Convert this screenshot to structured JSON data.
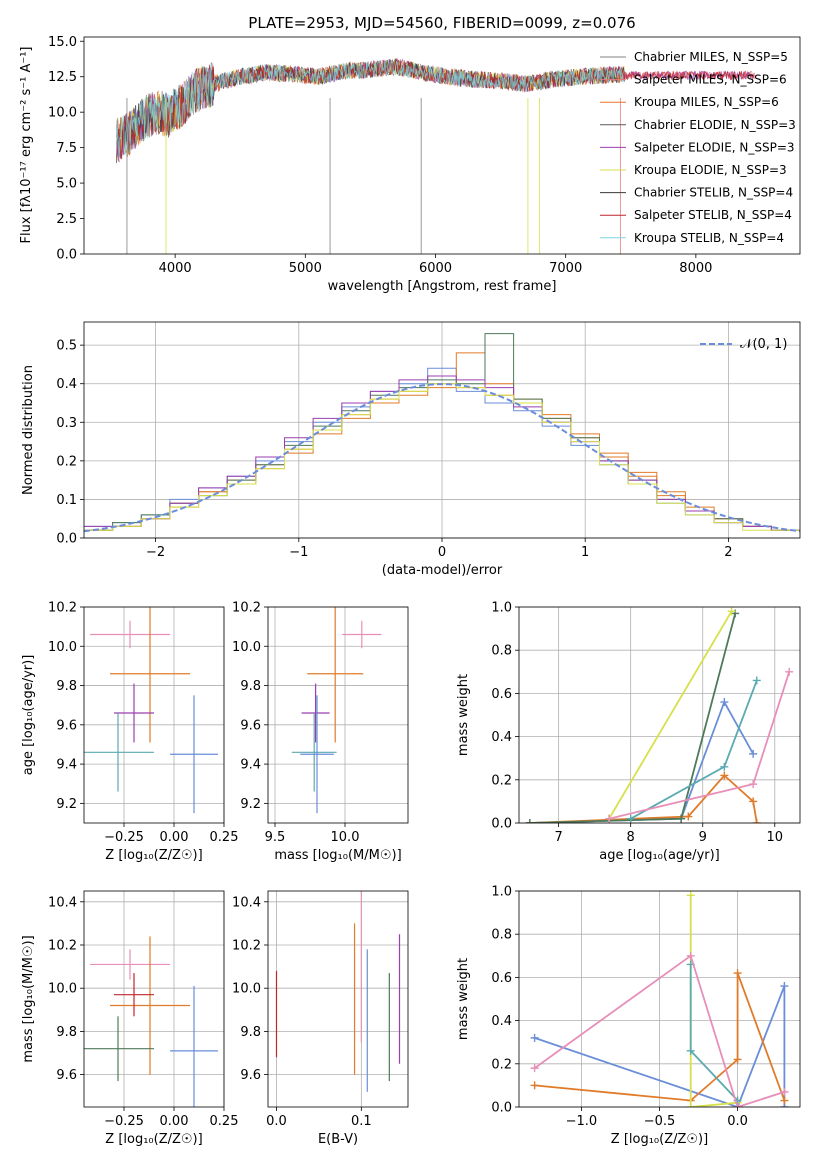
{
  "colors": {
    "series": [
      "#808080",
      "#e07b7b",
      "#e8762a",
      "#5a5a5a",
      "#9b3fb0",
      "#d7e04a",
      "#3a3a3a",
      "#c0272d",
      "#7fd6e0"
    ],
    "normal": "#6a8ed8",
    "grid": "#b0b0b0",
    "dots": [
      "#6a8ed8",
      "#e07b2a",
      "#4f7a5a",
      "#9b3fb0",
      "#5aaab0",
      "#e78fb8",
      "#d7e04a",
      "#8a8a8a",
      "#c0272d"
    ]
  },
  "chart_data": [
    {
      "type": "line",
      "title": "PLATE=2953, MJD=54560, FIBERID=0099, z=0.076",
      "xlabel": "wavelength [Angstrom, rest frame]",
      "ylabel": "Flux [fλ10⁻¹⁷ erg cm⁻² s⁻¹ A⁻¹]",
      "xlim": [
        3300,
        8800
      ],
      "ylim": [
        0,
        15.3
      ],
      "xticks": [
        4000,
        5000,
        6000,
        7000,
        8000
      ],
      "yticks": [
        0.0,
        2.5,
        5.0,
        7.5,
        10.0,
        12.5,
        15.0
      ],
      "grid": false,
      "legend_placement": "right",
      "legend": [
        "Chabrier MILES, N_SSP=5",
        "Salpeter MILES, N_SSP=6",
        "Kroupa MILES, N_SSP=6",
        "Chabrier ELODIE, N_SSP=3",
        "Salpeter ELODIE, N_SSP=3",
        "Kroupa ELODIE, N_SSP=3",
        "Chabrier STELIB, N_SSP=4",
        "Salpeter STELIB, N_SSP=4",
        "Kroupa STELIB, N_SSP=4"
      ],
      "spectrum_envelope": {
        "x": [
          3550,
          3650,
          3750,
          3850,
          3950,
          4050,
          4150,
          4300,
          4500,
          4700,
          4900,
          5100,
          5300,
          5500,
          5700,
          5900,
          6100,
          6300,
          6500,
          6700,
          6900,
          7100,
          7300,
          7450
        ],
        "y": [
          8.0,
          8.5,
          9.5,
          10.0,
          9.8,
          10.5,
          11.5,
          12.0,
          12.5,
          12.8,
          12.7,
          12.5,
          12.9,
          13.0,
          13.2,
          12.8,
          12.5,
          12.3,
          12.2,
          12.0,
          12.3,
          12.5,
          12.6,
          12.7
        ]
      }
    },
    {
      "type": "bar",
      "xlabel": "(data-model)/error",
      "ylabel": "Normed distribution",
      "xlim": [
        -2.5,
        2.5
      ],
      "ylim": [
        0,
        0.56
      ],
      "xticks": [
        -2,
        -1,
        0,
        1,
        2
      ],
      "yticks": [
        0.0,
        0.1,
        0.2,
        0.3,
        0.4,
        0.5
      ],
      "grid": true,
      "legend_placement": "top-right",
      "legend": [
        "𝒩(0, 1)"
      ],
      "bin_edges": [
        -2.5,
        -2.3,
        -2.1,
        -1.9,
        -1.7,
        -1.5,
        -1.3,
        -1.1,
        -0.9,
        -0.7,
        -0.5,
        -0.3,
        -0.1,
        0.1,
        0.3,
        0.5,
        0.7,
        0.9,
        1.1,
        1.3,
        1.5,
        1.7,
        1.9,
        2.1,
        2.3,
        2.5
      ],
      "series": [
        {
          "values": [
            0.02,
            0.03,
            0.05,
            0.09,
            0.12,
            0.15,
            0.19,
            0.23,
            0.28,
            0.32,
            0.36,
            0.38,
            0.4,
            0.39,
            0.37,
            0.35,
            0.31,
            0.26,
            0.21,
            0.16,
            0.11,
            0.07,
            0.05,
            0.03,
            0.02
          ]
        },
        {
          "values": [
            0.03,
            0.04,
            0.06,
            0.1,
            0.13,
            0.16,
            0.2,
            0.25,
            0.3,
            0.34,
            0.38,
            0.4,
            0.44,
            0.38,
            0.35,
            0.33,
            0.29,
            0.24,
            0.19,
            0.14,
            0.09,
            0.06,
            0.04,
            0.03,
            0.02
          ]
        },
        {
          "values": [
            0.02,
            0.03,
            0.05,
            0.08,
            0.12,
            0.14,
            0.18,
            0.22,
            0.27,
            0.31,
            0.35,
            0.37,
            0.39,
            0.48,
            0.4,
            0.36,
            0.32,
            0.27,
            0.22,
            0.17,
            0.12,
            0.08,
            0.05,
            0.03,
            0.02
          ]
        },
        {
          "values": [
            0.02,
            0.04,
            0.06,
            0.09,
            0.11,
            0.15,
            0.19,
            0.24,
            0.29,
            0.33,
            0.37,
            0.39,
            0.41,
            0.4,
            0.53,
            0.36,
            0.31,
            0.26,
            0.2,
            0.15,
            0.1,
            0.07,
            0.05,
            0.03,
            0.02
          ]
        },
        {
          "values": [
            0.03,
            0.03,
            0.05,
            0.09,
            0.13,
            0.16,
            0.21,
            0.26,
            0.31,
            0.35,
            0.38,
            0.41,
            0.42,
            0.41,
            0.39,
            0.34,
            0.3,
            0.25,
            0.2,
            0.15,
            0.1,
            0.07,
            0.04,
            0.03,
            0.02
          ]
        },
        {
          "values": [
            0.02,
            0.03,
            0.05,
            0.08,
            0.11,
            0.14,
            0.18,
            0.23,
            0.28,
            0.32,
            0.36,
            0.38,
            0.4,
            0.39,
            0.37,
            0.35,
            0.3,
            0.25,
            0.19,
            0.14,
            0.09,
            0.06,
            0.04,
            0.02,
            0.02
          ]
        }
      ],
      "normal_curve": {
        "mean": 0,
        "sd": 1
      }
    },
    {
      "type": "scatter",
      "xlabel": "Z [log₁₀(Z/Z☉)]",
      "ylabel": "age [log₁₀(age/yr)]",
      "xlim": [
        -0.45,
        0.25
      ],
      "ylim": [
        9.1,
        10.2
      ],
      "xticks": [
        -0.25,
        0.0,
        0.25
      ],
      "yticks": [
        9.2,
        9.4,
        9.6,
        9.8,
        10.0,
        10.2
      ],
      "grid": true,
      "errorbars": [
        {
          "x": -0.22,
          "y": 10.06,
          "xerr": 0.2,
          "yerr": 0.07,
          "c": 5
        },
        {
          "x": -0.12,
          "y": 9.86,
          "xerr": 0.2,
          "yerr": 0.35,
          "c": 1
        },
        {
          "x": -0.2,
          "y": 9.66,
          "xerr": 0.1,
          "yerr": 0.15,
          "c": 3
        },
        {
          "x": -0.28,
          "y": 9.46,
          "xerr": 0.18,
          "yerr": 0.2,
          "c": 4
        },
        {
          "x": 0.1,
          "y": 9.45,
          "xerr": 0.12,
          "yerr": 0.3,
          "c": 0
        }
      ]
    },
    {
      "type": "scatter",
      "xlabel": "mass [log₁₀(M/M☉)]",
      "ylabel": "",
      "xlim": [
        9.45,
        10.45
      ],
      "ylim": [
        9.1,
        10.2
      ],
      "xticks": [
        9.5,
        10.0
      ],
      "yticks": [
        9.2,
        9.4,
        9.6,
        9.8,
        10.0,
        10.2
      ],
      "grid": true,
      "errorbars": [
        {
          "x": 10.12,
          "y": 10.06,
          "xerr": 0.14,
          "yerr": 0.07,
          "c": 5
        },
        {
          "x": 9.93,
          "y": 9.86,
          "xerr": 0.2,
          "yerr": 0.35,
          "c": 1
        },
        {
          "x": 9.79,
          "y": 9.66,
          "xerr": 0.1,
          "yerr": 0.15,
          "c": 3
        },
        {
          "x": 9.78,
          "y": 9.46,
          "xerr": 0.16,
          "yerr": 0.2,
          "c": 4
        },
        {
          "x": 9.8,
          "y": 9.45,
          "xerr": 0.12,
          "yerr": 0.3,
          "c": 0
        }
      ]
    },
    {
      "type": "line",
      "xlabel": "age [log₁₀(age/yr)]",
      "ylabel": "mass weight",
      "xlim": [
        6.45,
        10.35
      ],
      "ylim": [
        0,
        1
      ],
      "xticks": [
        7,
        8,
        9,
        10
      ],
      "yticks": [
        0.0,
        0.2,
        0.4,
        0.6,
        0.8,
        1.0
      ],
      "grid": true,
      "series": [
        {
          "x": [
            6.6,
            8.7,
            9.3,
            9.7
          ],
          "y": [
            0.0,
            0.02,
            0.56,
            0.32
          ],
          "c": 0
        },
        {
          "x": [
            6.6,
            8.8,
            9.3,
            9.7,
            9.75
          ],
          "y": [
            0.0,
            0.03,
            0.22,
            0.1,
            0.0
          ],
          "c": 1
        },
        {
          "x": [
            6.6,
            8.7,
            9.45
          ],
          "y": [
            0.0,
            0.02,
            0.97
          ],
          "c": 2
        },
        {
          "x": [
            7.7,
            9.4
          ],
          "y": [
            0.02,
            0.98
          ],
          "c": 6
        },
        {
          "x": [
            8.0,
            9.3,
            9.75
          ],
          "y": [
            0.02,
            0.26,
            0.66
          ],
          "c": 4
        },
        {
          "x": [
            7.7,
            9.7,
            10.2
          ],
          "y": [
            0.02,
            0.18,
            0.7
          ],
          "c": 5
        }
      ]
    },
    {
      "type": "scatter",
      "xlabel": "Z [log₁₀(Z/Z☉)]",
      "ylabel": "mass [log₁₀(M/M☉)]",
      "xlim": [
        -0.45,
        0.25
      ],
      "ylim": [
        9.45,
        10.45
      ],
      "xticks": [
        -0.25,
        0.0,
        0.25
      ],
      "yticks": [
        9.6,
        9.8,
        10.0,
        10.2,
        10.4
      ],
      "grid": true,
      "errorbars": [
        {
          "x": -0.22,
          "y": 10.11,
          "xerr": 0.2,
          "yerr": 0.07,
          "c": 5
        },
        {
          "x": -0.12,
          "y": 9.92,
          "xerr": 0.2,
          "yerr": 0.32,
          "c": 1
        },
        {
          "x": -0.2,
          "y": 9.97,
          "xerr": 0.1,
          "yerr": 0.1,
          "c": 8
        },
        {
          "x": -0.28,
          "y": 9.72,
          "xerr": 0.18,
          "yerr": 0.15,
          "c": 2
        },
        {
          "x": 0.1,
          "y": 9.71,
          "xerr": 0.12,
          "yerr": 0.3,
          "c": 0
        }
      ]
    },
    {
      "type": "scatter",
      "xlabel": "E(B-V)",
      "ylabel": "",
      "xlim": [
        -0.01,
        0.155
      ],
      "ylim": [
        9.45,
        10.45
      ],
      "xticks": [
        0.0,
        0.1
      ],
      "yticks": [
        9.6,
        9.8,
        10.0,
        10.2,
        10.4
      ],
      "grid": true,
      "errorbars": [
        {
          "x": 0.0,
          "y": 9.88,
          "xerr": 0,
          "yerr": 0.2,
          "c": 8
        },
        {
          "x": 0.092,
          "y": 9.95,
          "xerr": 0,
          "yerr": 0.35,
          "c": 1
        },
        {
          "x": 0.1,
          "y": 10.1,
          "xerr": 0,
          "yerr": 0.35,
          "c": 5
        },
        {
          "x": 0.107,
          "y": 9.85,
          "xerr": 0,
          "yerr": 0.33,
          "c": 0
        },
        {
          "x": 0.133,
          "y": 9.82,
          "xerr": 0,
          "yerr": 0.25,
          "c": 2
        },
        {
          "x": 0.145,
          "y": 9.95,
          "xerr": 0,
          "yerr": 0.3,
          "c": 3
        }
      ]
    },
    {
      "type": "line",
      "xlabel": "Z [log₁₀(Z/Z☉)]",
      "ylabel": "mass weight",
      "xlim": [
        -1.4,
        0.4
      ],
      "ylim": [
        0,
        1
      ],
      "xticks": [
        -1.0,
        -0.5,
        0.0
      ],
      "yticks": [
        0.0,
        0.2,
        0.4,
        0.6,
        0.8,
        1.0
      ],
      "grid": true,
      "series": [
        {
          "x": [
            -1.3,
            0.0,
            0.3,
            0.3
          ],
          "y": [
            0.32,
            0.0,
            0.56,
            0.0
          ],
          "c": 0
        },
        {
          "x": [
            -1.3,
            -0.3,
            0.0,
            0.0,
            0.3
          ],
          "y": [
            0.1,
            0.03,
            0.22,
            0.62,
            0.03
          ],
          "c": 1
        },
        {
          "x": [
            -0.3,
            -0.3,
            0.0
          ],
          "y": [
            0.98,
            0.0,
            0.02
          ],
          "c": 6
        },
        {
          "x": [
            -0.3,
            -0.3,
            0.0
          ],
          "y": [
            0.66,
            0.26,
            0.03
          ],
          "c": 4
        },
        {
          "x": [
            -1.3,
            -0.3,
            0.0,
            0.3
          ],
          "y": [
            0.18,
            0.7,
            0.0,
            0.07
          ],
          "c": 5
        }
      ]
    }
  ]
}
